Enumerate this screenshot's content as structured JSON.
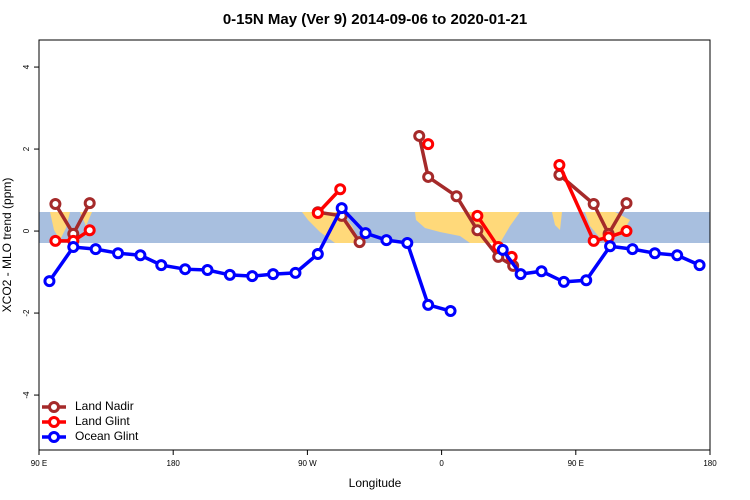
{
  "chart_data": {
    "type": "line",
    "title": "0-15N May (Ver 9)   2014-09-06 to 2020-01-21",
    "x_label": "Longitude",
    "y_label": "XCO2 - MLO trend (ppm)",
    "xlim": [
      90,
      540
    ],
    "xticks": [
      {
        "value": 90,
        "label": "90 E"
      },
      {
        "value": 180,
        "label": "180"
      },
      {
        "value": 270,
        "label": "90 W"
      },
      {
        "value": 360,
        "label": "0"
      },
      {
        "value": 450,
        "label": "90 E"
      },
      {
        "value": 540,
        "label": "180"
      }
    ],
    "ylim": [
      -5.34,
      4.66
    ],
    "yticks": [
      -4,
      -2,
      0,
      2,
      4
    ],
    "legend": "bottom-left",
    "series": [
      {
        "name": "Land Nadir",
        "color": "#a52a2a",
        "x": [
          101,
          113,
          124,
          200,
          277,
          293,
          305,
          330,
          345,
          351,
          370,
          384,
          398,
          408,
          425,
          439,
          462,
          472,
          484
        ],
        "values": [
          0.66,
          -0.07,
          0.68,
          null,
          0.46,
          0.37,
          -0.27,
          null,
          2.32,
          1.32,
          0.85,
          0.02,
          -0.63,
          -0.85,
          null,
          1.37,
          0.66,
          -0.07,
          0.68
        ]
      },
      {
        "name": "Land Glint",
        "color": "#ff0000",
        "x": [
          101,
          113,
          124,
          200,
          277,
          292,
          320,
          351,
          368,
          384,
          398,
          407,
          425,
          439,
          462,
          472,
          484
        ],
        "values": [
          -0.24,
          -0.24,
          0.02,
          null,
          0.44,
          1.02,
          null,
          2.12,
          null,
          0.37,
          -0.39,
          -0.63,
          null,
          1.61,
          -0.24,
          -0.15,
          0.0
        ]
      },
      {
        "name": "Ocean Glint",
        "color": "#0000ff",
        "x": [
          97,
          113,
          128,
          143,
          158,
          172,
          188,
          203,
          218,
          233,
          247,
          262,
          277,
          293,
          309,
          323,
          337,
          351,
          366,
          385,
          401,
          413,
          427,
          442,
          457,
          473,
          488,
          503,
          518,
          533
        ],
        "values": [
          -1.22,
          -0.39,
          -0.44,
          -0.54,
          -0.59,
          -0.83,
          -0.93,
          -0.95,
          -1.07,
          -1.1,
          -1.05,
          -1.02,
          -0.56,
          0.56,
          -0.05,
          -0.22,
          -0.29,
          -1.8,
          -1.95,
          null,
          -0.46,
          -1.05,
          -0.98,
          -1.24,
          -1.2,
          -0.37,
          -0.44,
          -0.54,
          -0.59,
          -0.83
        ]
      }
    ]
  }
}
